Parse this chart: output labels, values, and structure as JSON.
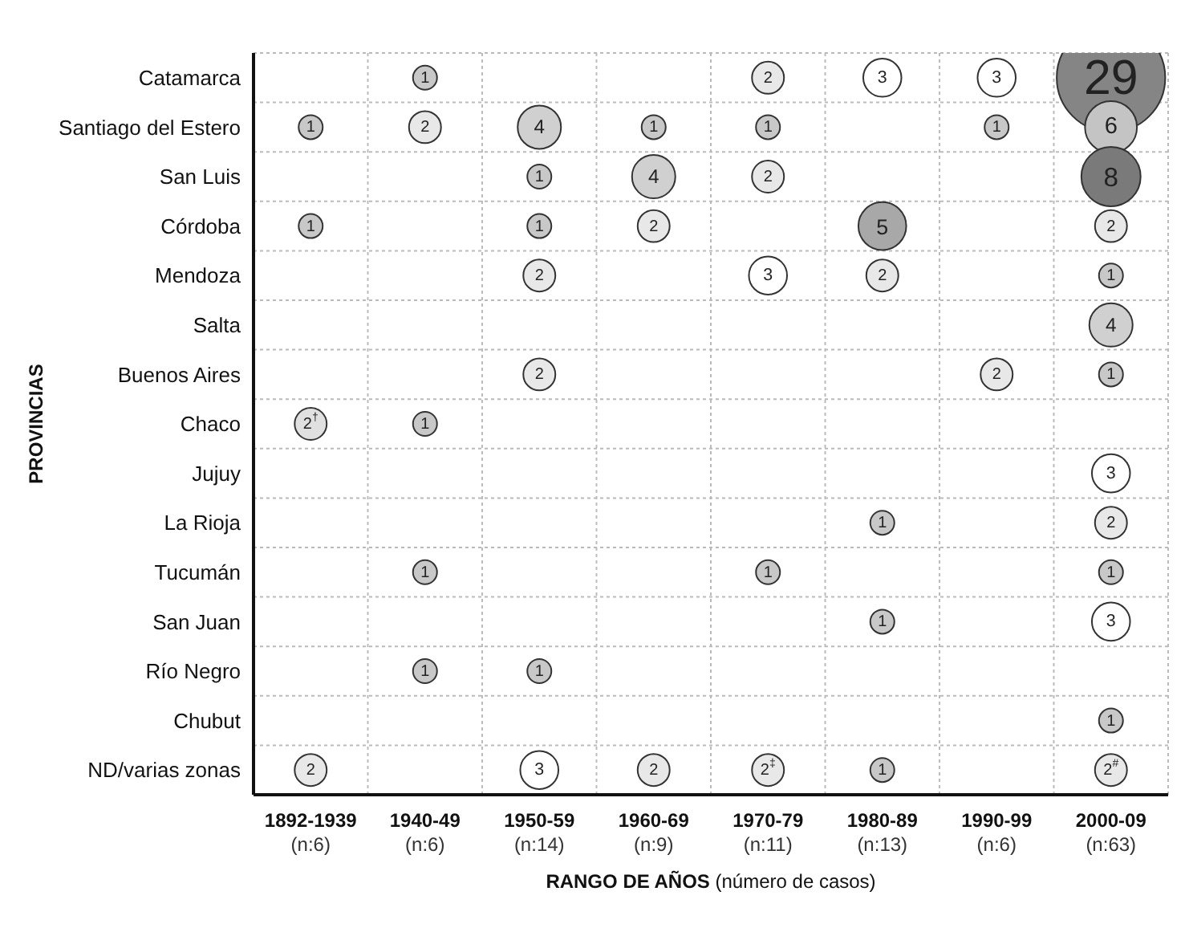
{
  "chart_data": {
    "type": "heatmap",
    "xlabel": "RANGO DE AÑOS (número de casos)",
    "ylabel": "PROVINCIAS",
    "categories": [
      "1892-1939\n(n:6)",
      "1940-49\n(n:6)",
      "1950-59\n(n:14)",
      "1960-69\n(n:9)",
      "1970-79\n(n:11)",
      "1980-89\n(n:13)",
      "1990-99\n(n:6)",
      "2000-09\n(n:63)"
    ],
    "y_categories": [
      "Catamarca",
      "Santiago del Estero",
      "San Luis",
      "Córdoba",
      "Mendoza",
      "Salta",
      "Buenos Aires",
      "Chaco",
      "Jujuy",
      "La Rioja",
      "Tucumán",
      "San Juan",
      "Río Negro",
      "Chubut",
      "ND/varias zonas"
    ],
    "cells": [
      [
        null,
        1,
        null,
        null,
        2,
        3,
        3,
        29
      ],
      [
        1,
        2,
        4,
        1,
        1,
        null,
        1,
        6
      ],
      [
        null,
        null,
        1,
        4,
        2,
        null,
        null,
        8
      ],
      [
        1,
        null,
        1,
        2,
        null,
        5,
        null,
        2
      ],
      [
        null,
        null,
        2,
        null,
        3,
        2,
        null,
        1
      ],
      [
        null,
        null,
        null,
        null,
        null,
        null,
        null,
        4
      ],
      [
        null,
        null,
        2,
        null,
        null,
        null,
        2,
        1
      ],
      [
        2,
        1,
        null,
        null,
        null,
        null,
        null,
        null
      ],
      [
        null,
        null,
        null,
        null,
        null,
        null,
        null,
        3
      ],
      [
        null,
        null,
        null,
        null,
        null,
        1,
        null,
        2
      ],
      [
        null,
        1,
        null,
        null,
        1,
        null,
        null,
        1
      ],
      [
        null,
        null,
        null,
        null,
        null,
        1,
        null,
        3
      ],
      [
        null,
        1,
        1,
        null,
        null,
        null,
        null,
        null
      ],
      [
        null,
        null,
        null,
        null,
        null,
        null,
        null,
        1
      ],
      [
        2,
        null,
        3,
        2,
        2,
        1,
        null,
        2
      ]
    ],
    "cell_labels": [
      [
        null,
        "1",
        null,
        null,
        "2",
        "3",
        "3",
        "29"
      ],
      [
        "1",
        "2",
        "4",
        "1",
        "1",
        null,
        "1",
        "6"
      ],
      [
        null,
        null,
        "1",
        "4",
        "2",
        null,
        null,
        "8"
      ],
      [
        "1",
        null,
        "1",
        "2",
        null,
        "5",
        null,
        "2"
      ],
      [
        null,
        null,
        "2",
        null,
        "3",
        "2",
        null,
        "1"
      ],
      [
        null,
        null,
        null,
        null,
        null,
        null,
        null,
        "4"
      ],
      [
        null,
        null,
        "2",
        null,
        null,
        null,
        "2",
        "1"
      ],
      [
        "2$^{†}$",
        "1",
        null,
        null,
        null,
        null,
        null,
        null
      ],
      [
        null,
        null,
        null,
        null,
        null,
        null,
        null,
        "3"
      ],
      [
        null,
        null,
        null,
        null,
        null,
        "1",
        null,
        "2"
      ],
      [
        null,
        "1",
        null,
        null,
        "1",
        null,
        null,
        "1"
      ],
      [
        null,
        null,
        null,
        null,
        null,
        "1",
        null,
        "3"
      ],
      [
        null,
        "1",
        "1",
        null,
        null,
        null,
        null,
        null
      ],
      [
        null,
        null,
        null,
        null,
        null,
        null,
        null,
        "1"
      ],
      [
        "2",
        null,
        "3",
        "2",
        "2$^{‡}$",
        "1",
        null,
        "2$^{#}$"
      ]
    ],
    "colors": [
      [
        null,
        "#c8c8c8",
        null,
        null,
        "#e8e8e8",
        "#ffffff",
        "#ffffff",
        "#858585"
      ],
      [
        "#c8c8c8",
        "#e8e8e8",
        "#d0d0d0",
        "#c8c8c8",
        "#c8c8c8",
        null,
        "#c8c8c8",
        "#c4c4c4"
      ],
      [
        null,
        null,
        "#c8c8c8",
        "#d0d0d0",
        "#e8e8e8",
        null,
        null,
        "#7a7a7a"
      ],
      [
        "#c8c8c8",
        null,
        "#c8c8c8",
        "#e8e8e8",
        null,
        "#a8a8a8",
        null,
        "#e8e8e8"
      ],
      [
        null,
        null,
        "#e8e8e8",
        null,
        "#ffffff",
        "#e8e8e8",
        null,
        "#c8c8c8"
      ],
      [
        null,
        null,
        null,
        null,
        null,
        null,
        null,
        "#d0d0d0"
      ],
      [
        null,
        null,
        "#e8e8e8",
        null,
        null,
        null,
        "#e8e8e8",
        "#c8c8c8"
      ],
      [
        "#e0e0e0",
        "#c8c8c8",
        null,
        null,
        null,
        null,
        null,
        null
      ],
      [
        null,
        null,
        null,
        null,
        null,
        null,
        null,
        "#ffffff"
      ],
      [
        null,
        null,
        null,
        null,
        null,
        "#c8c8c8",
        null,
        "#e8e8e8"
      ],
      [
        null,
        "#c8c8c8",
        null,
        null,
        "#c8c8c8",
        null,
        null,
        "#c8c8c8"
      ],
      [
        null,
        null,
        null,
        null,
        null,
        "#c8c8c8",
        null,
        "#ffffff"
      ],
      [
        null,
        "#c8c8c8",
        "#c8c8c8",
        null,
        null,
        null,
        null,
        null
      ],
      [
        null,
        null,
        null,
        null,
        null,
        null,
        null,
        "#c8c8c8"
      ],
      [
        "#e8e8e8",
        null,
        "#ffffff",
        "#e8e8e8",
        "#e8e8e8",
        "#c8c8c8",
        null,
        "#e8e8e8"
      ]
    ],
    "data_labels": true,
    "grid": true
  }
}
